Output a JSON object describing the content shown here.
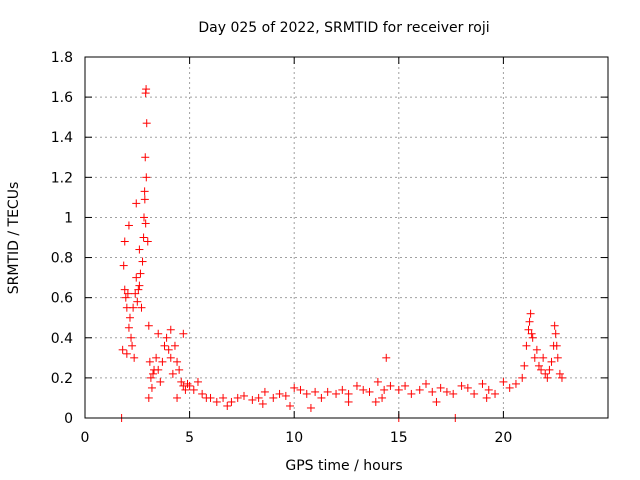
{
  "chart_data": {
    "type": "scatter",
    "title": "Day 025 of 2022, SRMTID for receiver roji",
    "xlabel": "GPS time / hours",
    "ylabel": "SRMTID / TECUs",
    "xlim": [
      0,
      25
    ],
    "ylim": [
      0,
      1.8
    ],
    "xticks": [
      0,
      5,
      10,
      15,
      20
    ],
    "xtick_labels": [
      "0",
      "5",
      "10",
      "15",
      "20"
    ],
    "yticks": [
      0,
      0.2,
      0.4,
      0.6,
      0.8,
      1.0,
      1.2,
      1.4,
      1.6,
      1.8
    ],
    "ytick_labels": [
      "0",
      "0.2",
      "0.4",
      "0.6",
      "0.8",
      "1",
      "1.2",
      "1.4",
      "1.6",
      "1.8"
    ],
    "grid": true,
    "marker": "+",
    "color": "#ff0000",
    "series": [
      {
        "name": "SRMTID",
        "x": [
          1.8,
          1.85,
          1.9,
          1.95,
          2.0,
          2.05,
          2.1,
          2.15,
          2.2,
          2.25,
          2.3,
          2.35,
          2.4,
          2.45,
          2.5,
          2.55,
          2.6,
          2.65,
          2.7,
          2.75,
          2.8,
          2.82,
          2.85,
          2.88,
          2.9,
          2.92,
          2.95,
          3.0,
          3.05,
          3.1,
          3.15,
          3.2,
          3.25,
          3.3,
          3.4,
          3.5,
          3.6,
          3.7,
          3.8,
          3.9,
          4.0,
          4.1,
          4.2,
          4.3,
          4.4,
          4.5,
          4.6,
          4.7,
          4.8,
          4.9,
          5.0,
          5.2,
          5.4,
          5.6,
          5.8,
          6.0,
          6.3,
          6.6,
          7.0,
          7.3,
          7.6,
          8.0,
          8.3,
          8.6,
          9.0,
          9.3,
          9.6,
          10.0,
          10.3,
          10.6,
          11.0,
          11.3,
          11.6,
          12.0,
          12.3,
          12.6,
          13.0,
          13.3,
          13.6,
          14.0,
          14.3,
          14.4,
          14.6,
          15.0,
          15.3,
          15.6,
          16.0,
          16.3,
          16.6,
          17.0,
          17.3,
          17.6,
          18.0,
          18.3,
          18.6,
          19.0,
          19.3,
          19.6,
          20.0,
          20.3,
          20.6,
          20.9,
          21.0,
          21.1,
          21.2,
          21.3,
          21.4,
          21.5,
          21.6,
          21.7,
          21.8,
          21.9,
          22.0,
          22.1,
          22.2,
          22.3,
          22.4,
          22.5,
          22.6,
          22.7,
          22.8,
          1.75,
          15.0,
          17.7,
          3.05,
          2.9,
          2.93,
          2.86,
          2.45,
          2.1,
          1.9,
          2.0,
          2.6,
          4.1,
          4.4,
          6.8,
          8.5,
          10.8,
          12.6,
          14.2,
          16.8,
          19.2,
          21.25,
          21.35,
          22.45,
          22.55,
          3.5,
          4.7,
          9.8,
          13.9
        ],
        "y": [
          0.34,
          0.76,
          0.88,
          0.6,
          0.55,
          0.62,
          0.45,
          0.5,
          0.4,
          0.36,
          0.55,
          0.3,
          0.62,
          0.7,
          0.58,
          0.64,
          0.66,
          0.72,
          0.55,
          0.78,
          0.9,
          1.0,
          1.13,
          1.3,
          1.62,
          1.64,
          1.47,
          0.88,
          0.46,
          0.28,
          0.2,
          0.15,
          0.22,
          0.24,
          0.3,
          0.24,
          0.18,
          0.28,
          0.36,
          0.4,
          0.34,
          0.3,
          0.22,
          0.36,
          0.28,
          0.24,
          0.18,
          0.16,
          0.14,
          0.17,
          0.16,
          0.14,
          0.18,
          0.12,
          0.1,
          0.1,
          0.08,
          0.1,
          0.08,
          0.1,
          0.11,
          0.09,
          0.1,
          0.13,
          0.1,
          0.12,
          0.11,
          0.15,
          0.14,
          0.12,
          0.13,
          0.1,
          0.13,
          0.12,
          0.14,
          0.12,
          0.16,
          0.14,
          0.13,
          0.18,
          0.14,
          0.3,
          0.16,
          0.14,
          0.16,
          0.12,
          0.14,
          0.17,
          0.13,
          0.15,
          0.13,
          0.12,
          0.16,
          0.15,
          0.12,
          0.17,
          0.14,
          0.12,
          0.18,
          0.15,
          0.17,
          0.2,
          0.26,
          0.36,
          0.44,
          0.52,
          0.4,
          0.3,
          0.34,
          0.26,
          0.24,
          0.3,
          0.22,
          0.2,
          0.24,
          0.28,
          0.36,
          0.42,
          0.3,
          0.22,
          0.2,
          0.0,
          0.0,
          0.0,
          0.1,
          0.97,
          1.2,
          1.09,
          1.07,
          0.96,
          0.64,
          0.32,
          0.84,
          0.44,
          0.1,
          0.06,
          0.07,
          0.05,
          0.08,
          0.1,
          0.08,
          0.1,
          0.48,
          0.42,
          0.46,
          0.36,
          0.42,
          0.42,
          0.06,
          0.08
        ]
      }
    ]
  }
}
